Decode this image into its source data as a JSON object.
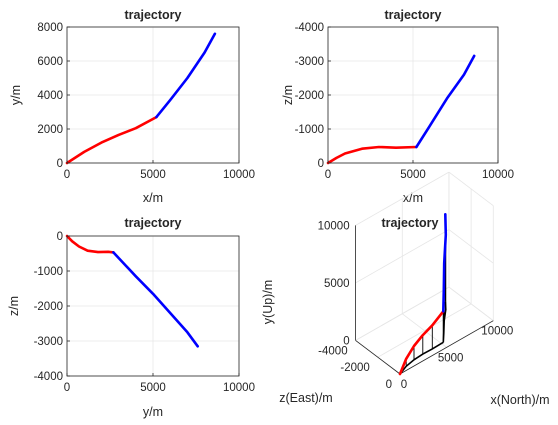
{
  "colors": {
    "segment1": "#ff0000",
    "segment2": "#0000ff",
    "projection": "#000000",
    "axis": "#262626",
    "grid": "#e6e6e6"
  },
  "chart_data": [
    {
      "type": "line",
      "title": "trajectory",
      "xlabel": "x/m",
      "ylabel": "y/m",
      "xlim": [
        0,
        10000
      ],
      "ylim": [
        0,
        8000
      ],
      "xticks": [
        "0",
        "5000",
        "10000"
      ],
      "yticks": [
        "0",
        "2000",
        "4000",
        "6000",
        "8000"
      ],
      "grid": true,
      "series": [
        {
          "color": "#ff0000",
          "x": [
            0,
            1000,
            2000,
            3000,
            4000,
            5200
          ],
          "y": [
            0,
            650,
            1200,
            1650,
            2050,
            2700
          ]
        },
        {
          "color": "#0000ff",
          "x": [
            5200,
            6000,
            7000,
            8000,
            8600
          ],
          "y": [
            2700,
            3700,
            5000,
            6500,
            7600
          ]
        }
      ]
    },
    {
      "type": "line",
      "title": "trajectory",
      "xlabel": "x/m",
      "ylabel": "z/m",
      "xlim": [
        0,
        10000
      ],
      "ylim": [
        -4000,
        0
      ],
      "y_reversed": true,
      "xticks": [
        "0",
        "5000",
        "10000"
      ],
      "yticks": [
        "-4000",
        "-3000",
        "-2000",
        "-1000",
        "0"
      ],
      "grid": true,
      "series": [
        {
          "color": "#ff0000",
          "x": [
            0,
            500,
            1000,
            2000,
            3000,
            4000,
            5200
          ],
          "y": [
            0,
            -150,
            -280,
            -420,
            -470,
            -450,
            -470
          ]
        },
        {
          "color": "#0000ff",
          "x": [
            5200,
            6000,
            7000,
            8000,
            8600
          ],
          "y": [
            -470,
            -1100,
            -1900,
            -2600,
            -3150
          ]
        }
      ]
    },
    {
      "type": "line",
      "title": "trajectory",
      "xlabel": "y/m",
      "ylabel": "z/m",
      "xlim": [
        0,
        10000
      ],
      "ylim": [
        -4000,
        0
      ],
      "xticks": [
        "0",
        "5000",
        "10000"
      ],
      "yticks": [
        "-4000",
        "-3000",
        "-2000",
        "-1000",
        "0"
      ],
      "grid": true,
      "series": [
        {
          "color": "#ff0000",
          "x": [
            0,
            300,
            700,
            1200,
            1800,
            2400,
            2700
          ],
          "y": [
            0,
            -150,
            -300,
            -420,
            -460,
            -450,
            -470
          ]
        },
        {
          "color": "#0000ff",
          "x": [
            2700,
            4000,
            5000,
            6000,
            7000,
            7600
          ],
          "y": [
            -470,
            -1150,
            -1650,
            -2200,
            -2750,
            -3150
          ]
        }
      ]
    },
    {
      "type": "line",
      "title": "trajectory",
      "xlabel": "x(North)/m",
      "ylabel": "z(East)/m",
      "zlabel": "y(Up)/m",
      "view": "3d",
      "grid": true,
      "xticks": [
        "0",
        "5000",
        "10000"
      ],
      "yticks": [
        "0",
        "-2000",
        "-4000"
      ],
      "zticks": [
        "0",
        "5000",
        "10000"
      ],
      "series": [
        {
          "color": "#ff0000",
          "x": [
            0,
            1000,
            2000,
            3000,
            4000,
            5200
          ],
          "y": [
            0,
            -280,
            -420,
            -470,
            -450,
            -470
          ],
          "z": [
            0,
            650,
            1200,
            1650,
            2050,
            2700
          ]
        },
        {
          "color": "#0000ff",
          "x": [
            5200,
            6000,
            7000,
            8000,
            8600
          ],
          "y": [
            -470,
            -1100,
            -1900,
            -2600,
            -3150
          ],
          "z": [
            2700,
            3700,
            5000,
            6500,
            7600
          ]
        }
      ]
    }
  ]
}
